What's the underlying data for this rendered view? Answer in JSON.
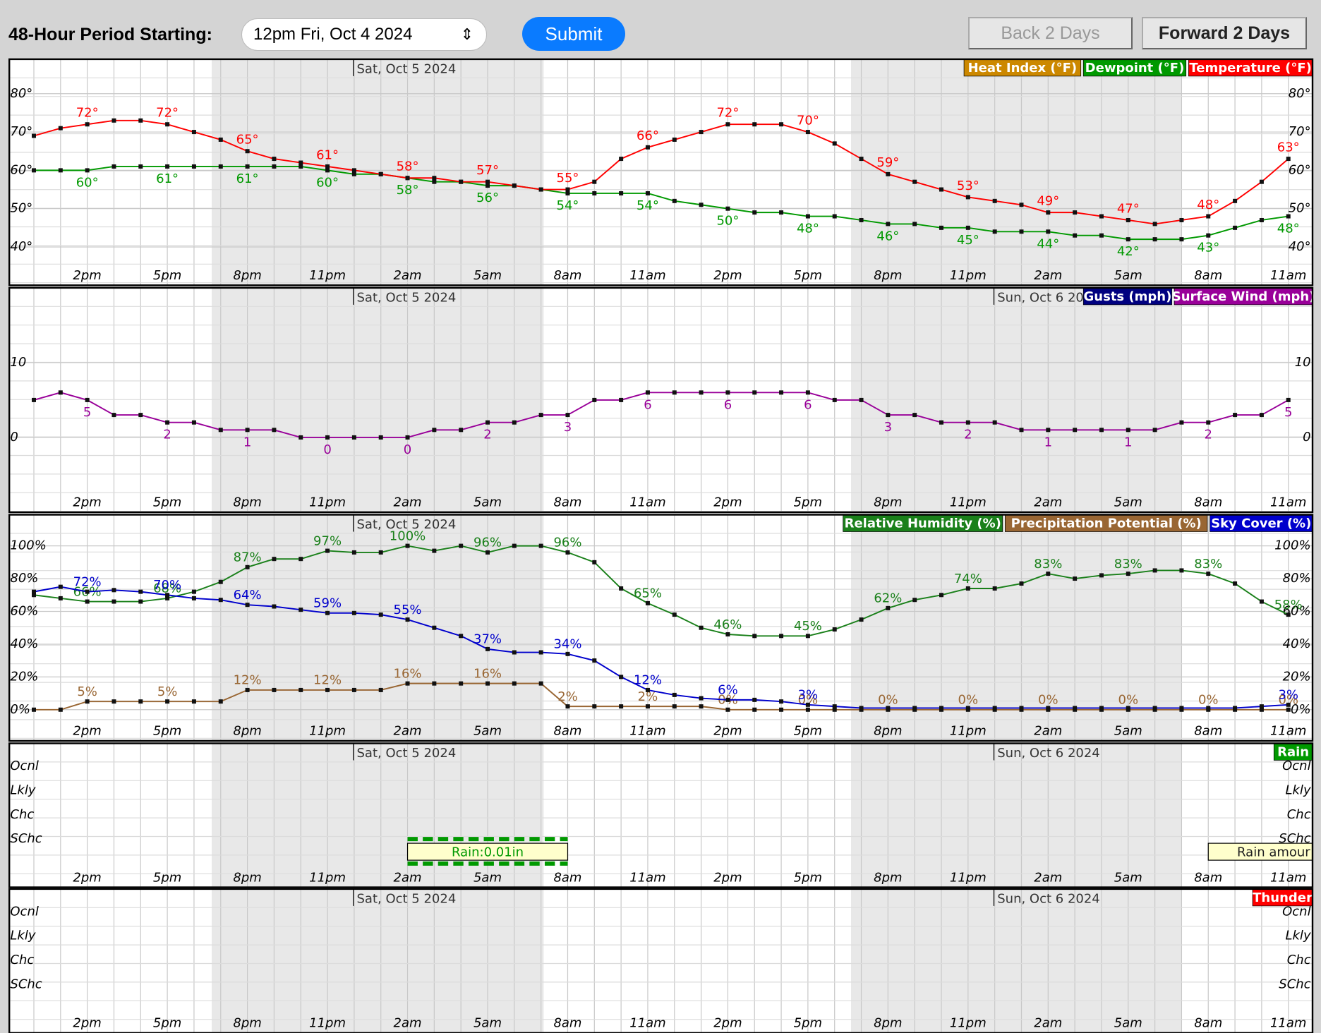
{
  "header": {
    "period_label": "48-Hour Period Starting:",
    "period_value": "12pm Fri, Oct 4 2024",
    "submit": "Submit",
    "back": "Back 2 Days",
    "forward": "Forward 2 Days"
  },
  "time_axis": {
    "categories": [
      null,
      null,
      "2pm",
      null,
      null,
      "5pm",
      null,
      null,
      "8pm",
      null,
      null,
      "11pm",
      null,
      null,
      "2am",
      null,
      null,
      "5am",
      null,
      null,
      "8am",
      null,
      null,
      "11am",
      null,
      null,
      "2pm",
      null,
      null,
      "5pm",
      null,
      null,
      "8pm",
      null,
      null,
      "11pm",
      null,
      null,
      "2am",
      null,
      null,
      "5am",
      null,
      null,
      "8am",
      null,
      null,
      "11am"
    ],
    "day_labels": [
      "Sat, Oct 5 2024",
      "Sun, Oct 6 2024"
    ]
  },
  "chart_data": [
    {
      "type": "line",
      "ylim": [
        30,
        89
      ],
      "yticks": [
        {
          "value": 40,
          "label": "40°"
        },
        {
          "value": 50,
          "label": "50°"
        },
        {
          "value": 60,
          "label": "60°"
        },
        {
          "value": 70,
          "label": "70°"
        },
        {
          "value": 80,
          "label": "80°"
        }
      ],
      "grid": true,
      "series": [
        {
          "name": "Heat Index (°F)",
          "color": "#cc8800",
          "values": [
            null,
            null,
            null,
            null,
            null,
            null,
            null,
            null,
            null,
            null,
            null,
            null,
            null,
            null,
            null,
            null,
            null,
            null,
            null,
            null,
            null,
            null,
            null,
            null,
            null,
            null,
            null,
            null,
            null,
            null,
            null,
            null,
            null,
            null,
            null,
            null,
            null,
            null,
            null,
            null,
            null,
            null,
            null,
            null,
            null,
            null,
            null,
            null
          ]
        },
        {
          "name": "Dewpoint (°F)",
          "color": "#009900",
          "values": [
            60,
            60,
            60,
            61,
            61,
            61,
            61,
            61,
            61,
            61,
            61,
            60,
            59,
            59,
            58,
            57,
            57,
            56,
            56,
            55,
            54,
            54,
            54,
            54,
            52,
            51,
            50,
            49,
            49,
            48,
            48,
            47,
            46,
            46,
            45,
            45,
            44,
            44,
            44,
            43,
            43,
            42,
            42,
            42,
            43,
            45,
            47,
            48
          ],
          "value_labels": [
            null,
            null,
            "60°",
            null,
            null,
            "61°",
            null,
            null,
            "61°",
            null,
            null,
            "60°",
            null,
            null,
            "58°",
            null,
            null,
            "56°",
            null,
            null,
            "54°",
            null,
            null,
            "54°",
            null,
            null,
            "50°",
            null,
            null,
            "48°",
            null,
            null,
            "46°",
            null,
            null,
            "45°",
            null,
            null,
            "44°",
            null,
            null,
            "42°",
            null,
            null,
            "43°",
            null,
            null,
            "48°"
          ]
        },
        {
          "name": "Temperature (°F)",
          "color": "#ff0000",
          "values": [
            69,
            71,
            72,
            73,
            73,
            72,
            70,
            68,
            65,
            63,
            62,
            61,
            60,
            59,
            58,
            58,
            57,
            57,
            56,
            55,
            55,
            57,
            63,
            66,
            68,
            70,
            72,
            72,
            72,
            70,
            67,
            63,
            59,
            57,
            55,
            53,
            52,
            51,
            49,
            49,
            48,
            47,
            46,
            47,
            48,
            52,
            57,
            63
          ],
          "value_labels": [
            null,
            null,
            "72°",
            null,
            null,
            "72°",
            null,
            null,
            "65°",
            null,
            null,
            "61°",
            null,
            null,
            "58°",
            null,
            null,
            "57°",
            null,
            null,
            "55°",
            null,
            null,
            "66°",
            null,
            null,
            "72°",
            null,
            null,
            "70°",
            null,
            null,
            "59°",
            null,
            null,
            "53°",
            null,
            null,
            "49°",
            null,
            null,
            "47°",
            null,
            null,
            "48°",
            null,
            null,
            "63°"
          ]
        }
      ]
    },
    {
      "type": "line",
      "ylim": [
        -10,
        20
      ],
      "yticks": [
        0,
        10
      ],
      "grid": true,
      "series": [
        {
          "name": "Gusts (mph)",
          "color": "#000080",
          "values": [
            null,
            null,
            null,
            null,
            null,
            null,
            null,
            null,
            null,
            null,
            null,
            null,
            null,
            null,
            null,
            null,
            null,
            null,
            null,
            null,
            null,
            null,
            null,
            null,
            null,
            null,
            null,
            null,
            null,
            null,
            null,
            null,
            null,
            null,
            null,
            null,
            null,
            null,
            null,
            null,
            null,
            null,
            null,
            null,
            null,
            null,
            null,
            null
          ]
        },
        {
          "name": "Surface Wind (mph)",
          "color": "#990099",
          "values": [
            5,
            6,
            5,
            3,
            3,
            2,
            2,
            1,
            1,
            1,
            0,
            0,
            0,
            0,
            0,
            1,
            1,
            2,
            2,
            3,
            3,
            5,
            5,
            6,
            6,
            6,
            6,
            6,
            6,
            6,
            5,
            5,
            3,
            3,
            2,
            2,
            2,
            1,
            1,
            1,
            1,
            1,
            1,
            2,
            2,
            3,
            3,
            5
          ]
        }
      ]
    },
    {
      "type": "line",
      "ylim": [
        -19,
        119
      ],
      "yticks": [
        {
          "value": 0,
          "label": "0%"
        },
        {
          "value": 20,
          "label": "20%"
        },
        {
          "value": 40,
          "label": "40%"
        },
        {
          "value": 60,
          "label": "60%"
        },
        {
          "value": 80,
          "label": "80%"
        },
        {
          "value": 100,
          "label": "100%"
        }
      ],
      "grid": true,
      "series": [
        {
          "name": "Relative Humidity (%)",
          "color": "#1a801a",
          "values": [
            70,
            68,
            66,
            66,
            66,
            68,
            72,
            78,
            87,
            92,
            92,
            97,
            96,
            96,
            100,
            97,
            100,
            96,
            100,
            100,
            96,
            90,
            74,
            65,
            58,
            50,
            46,
            45,
            45,
            45,
            49,
            55,
            62,
            67,
            70,
            74,
            74,
            77,
            83,
            80,
            82,
            83,
            85,
            85,
            83,
            77,
            66,
            58
          ],
          "value_labels": [
            null,
            null,
            "66%",
            null,
            null,
            "68%",
            null,
            null,
            "87%",
            null,
            null,
            "97%",
            null,
            null,
            "100%",
            null,
            null,
            "96%",
            null,
            null,
            "96%",
            null,
            null,
            "65%",
            null,
            null,
            "46%",
            null,
            null,
            "45%",
            null,
            null,
            "62%",
            null,
            null,
            "74%",
            null,
            null,
            "83%",
            null,
            null,
            "83%",
            null,
            null,
            "83%",
            null,
            null,
            "58%"
          ]
        },
        {
          "name": "Precipitation Potential (%)",
          "color": "#996633",
          "values": [
            0,
            0,
            5,
            5,
            5,
            5,
            5,
            5,
            12,
            12,
            12,
            12,
            12,
            12,
            16,
            16,
            16,
            16,
            16,
            16,
            2,
            2,
            2,
            2,
            2,
            2,
            0,
            0,
            0,
            0,
            0,
            0,
            0,
            0,
            0,
            0,
            0,
            0,
            0,
            0,
            0,
            0,
            0,
            0,
            0,
            0,
            0,
            0
          ],
          "value_labels": [
            null,
            null,
            "5%",
            null,
            null,
            "5%",
            null,
            null,
            "12%",
            null,
            null,
            "12%",
            null,
            null,
            "16%",
            null,
            null,
            "16%",
            null,
            null,
            "2%",
            null,
            null,
            "2%",
            null,
            null,
            "0%",
            null,
            null,
            "0%",
            null,
            null,
            "0%",
            null,
            null,
            "0%",
            null,
            null,
            "0%",
            null,
            null,
            "0%",
            null,
            null,
            "0%",
            null,
            null,
            "0%"
          ]
        },
        {
          "name": "Sky Cover (%)",
          "color": "#0000cc",
          "values": [
            72,
            75,
            72,
            73,
            72,
            70,
            68,
            67,
            64,
            63,
            61,
            59,
            59,
            58,
            55,
            50,
            45,
            37,
            35,
            35,
            34,
            30,
            20,
            12,
            9,
            7,
            6,
            6,
            5,
            3,
            2,
            1,
            1,
            1,
            1,
            1,
            1,
            1,
            1,
            1,
            1,
            1,
            1,
            1,
            1,
            1,
            2,
            3
          ],
          "value_labels": [
            null,
            null,
            "72%",
            null,
            null,
            "70%",
            null,
            null,
            "64%",
            null,
            null,
            "59%",
            null,
            null,
            "55%",
            null,
            null,
            "37%",
            null,
            null,
            "34%",
            null,
            null,
            "12%",
            null,
            null,
            "6%",
            null,
            null,
            "3%",
            null,
            null,
            null,
            null,
            null,
            null,
            null,
            null,
            null,
            null,
            null,
            null,
            null,
            null,
            null,
            null,
            null,
            "3%"
          ]
        }
      ]
    },
    {
      "type": "category",
      "ylevels": [
        "Ocnl",
        "Lkly",
        "Chc",
        "SChc"
      ],
      "series": [
        {
          "name": "Rain",
          "color": "#009900"
        }
      ],
      "annotations": [
        "Rain:0.01in",
        "Rain amour"
      ]
    },
    {
      "type": "category",
      "ylevels": [
        "Ocnl",
        "Lkly",
        "Chc",
        "SChc"
      ],
      "series": [
        {
          "name": "Thunder",
          "color": "#ff0000"
        }
      ]
    }
  ]
}
